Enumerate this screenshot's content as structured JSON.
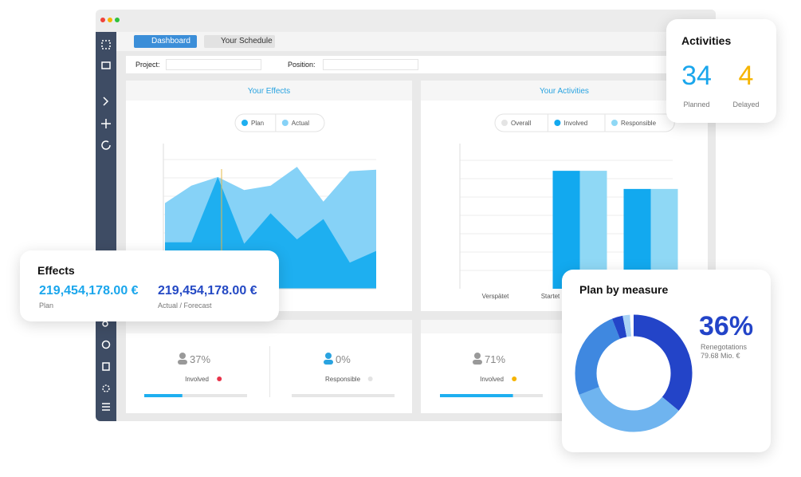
{
  "window": {
    "tabs": [
      "Dashboard",
      "Your Schedule"
    ],
    "filters": [
      "Project:",
      "Position:"
    ]
  },
  "effects_chart": {
    "type": "area",
    "title": "Your Effects",
    "categories": [
      null,
      null,
      null,
      null,
      null,
      null,
      null,
      null,
      null
    ],
    "series": [
      {
        "name": "Plan",
        "color": "#1eaff0",
        "values": [
          32,
          32,
          77,
          31,
          52,
          34,
          48,
          18,
          26
        ]
      },
      {
        "name": "Actual",
        "color": "#86d2f7",
        "values": [
          59,
          71,
          77,
          68,
          71,
          84,
          60,
          81,
          82
        ]
      }
    ],
    "ylim": [
      0,
      100
    ]
  },
  "activities_chart": {
    "type": "bar",
    "title": "Your Activities",
    "categories": [
      "Verspätet",
      "Startet",
      null
    ],
    "series": [
      {
        "name": "Overall",
        "color": "#e4e4e4",
        "values": [
          0,
          0,
          0
        ]
      },
      {
        "name": "Involved",
        "color": "#12a9ef",
        "values": [
          0,
          6.5,
          5.5
        ]
      },
      {
        "name": "Responsible",
        "color": "#8fd8f5",
        "values": [
          0,
          6.5,
          5.5
        ]
      }
    ],
    "ylim": [
      0,
      8
    ]
  },
  "kpis": [
    {
      "value": 37,
      "label": "37%",
      "name": "Involved",
      "color": "#e8334a"
    },
    {
      "value": 0,
      "label": "0%",
      "name": "Responsible",
      "color": "#e3e3e3"
    },
    {
      "value": 71,
      "label": "71%",
      "name": "Involved",
      "color": "#f6b400"
    }
  ],
  "effects_card": {
    "title": "Effects",
    "items": [
      {
        "amount": "219,454,178.00 €",
        "label": "Plan"
      },
      {
        "amount": "219,454,178.00 €",
        "label": "Actual / Forecast"
      }
    ]
  },
  "activities_card": {
    "title": "Activities",
    "items": [
      {
        "value": 34,
        "label": "Planned",
        "color": "#1aa6ec"
      },
      {
        "value": 4,
        "label": "Delayed",
        "color": "#f6b400"
      }
    ]
  },
  "plan_card": {
    "type": "donut",
    "title": "Plan by measure",
    "values": [
      36,
      33,
      25,
      3,
      2,
      1
    ],
    "colors": [
      "#2344c8",
      "#6fb4ef",
      "#3f88e0",
      "#2344c8",
      "#a9d2f5",
      "#ffffff"
    ],
    "highlight": {
      "label": "36%",
      "name": "Renegotations",
      "amount": "79.68 Mio. €"
    }
  }
}
